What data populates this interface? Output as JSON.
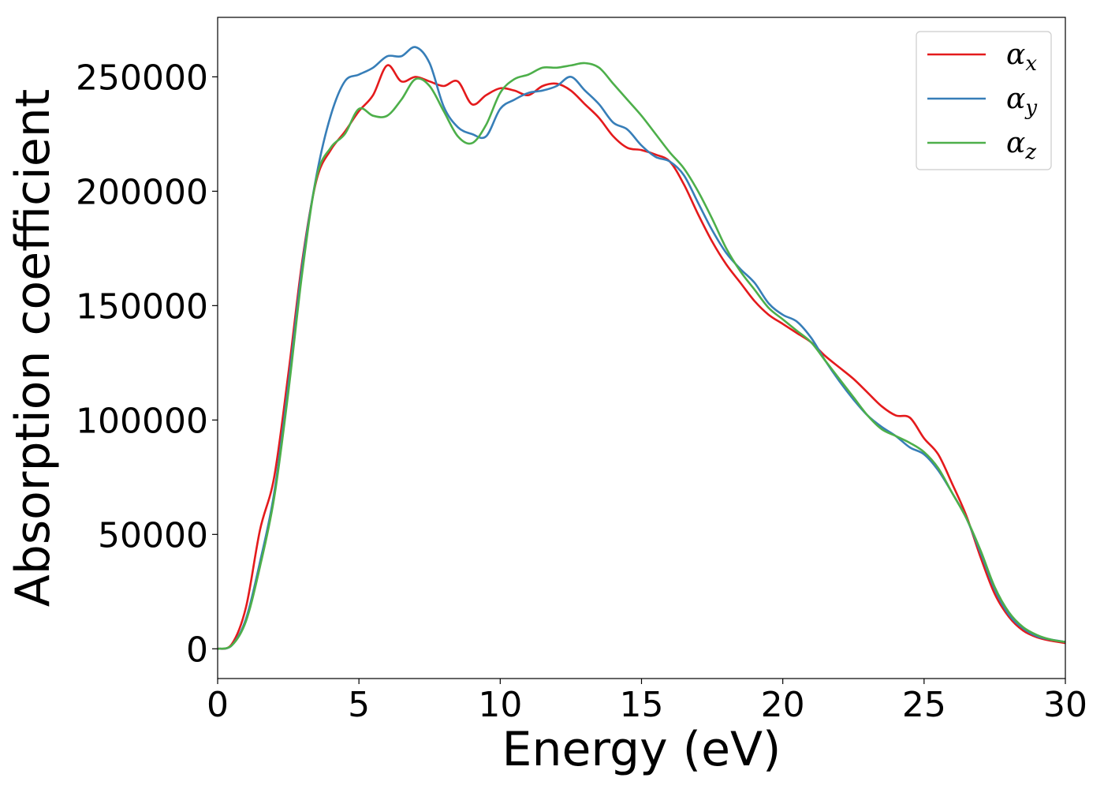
{
  "chart_data": {
    "type": "line",
    "title": "",
    "xlabel": "Energy (eV)",
    "ylabel": "Absorption coefficient",
    "xlim": [
      0,
      30
    ],
    "ylim": [
      -13000,
      276000
    ],
    "xticks": [
      0,
      5,
      10,
      15,
      20,
      25,
      30
    ],
    "xtick_labels": [
      "0",
      "5",
      "10",
      "15",
      "20",
      "25",
      "30"
    ],
    "yticks": [
      0,
      50000,
      100000,
      150000,
      200000,
      250000
    ],
    "ytick_labels": [
      "0",
      "50000",
      "100000",
      "150000",
      "200000",
      "250000"
    ],
    "grid": false,
    "legend_position": "top-right",
    "x": [
      0,
      0.5,
      1,
      1.5,
      2,
      2.5,
      3,
      3.5,
      4,
      4.5,
      5,
      5.5,
      6,
      6.5,
      7,
      7.5,
      8,
      8.5,
      9,
      9.5,
      10,
      10.5,
      11,
      11.5,
      12,
      12.5,
      13,
      13.5,
      14,
      14.5,
      15,
      15.5,
      16,
      16.5,
      17,
      17.5,
      18,
      18.5,
      19,
      19.5,
      20,
      20.5,
      21,
      21.5,
      22,
      22.5,
      23,
      23.5,
      24,
      24.5,
      25,
      25.5,
      26,
      26.5,
      27,
      27.5,
      28,
      28.5,
      29,
      29.5,
      30
    ],
    "series": [
      {
        "name": "x",
        "color": "#e41a1c",
        "values": [
          0,
          2000,
          18000,
          52000,
          75000,
          120000,
          170000,
          205000,
          218000,
          226000,
          235000,
          242000,
          255000,
          248000,
          250000,
          248000,
          246000,
          248000,
          238000,
          242000,
          245000,
          244000,
          242000,
          246000,
          247000,
          244000,
          238000,
          232000,
          224000,
          219000,
          218000,
          216000,
          213000,
          203000,
          190000,
          178000,
          168000,
          160000,
          152000,
          146000,
          142000,
          138000,
          134000,
          128000,
          123000,
          118000,
          112000,
          106000,
          102000,
          101000,
          92000,
          85000,
          72000,
          58000,
          40000,
          24000,
          14000,
          8000,
          5000,
          3500,
          2500
        ]
      },
      {
        "name": "y",
        "color": "#377eb8",
        "values": [
          0,
          1500,
          13000,
          38000,
          68000,
          115000,
          168000,
          207000,
          233000,
          248000,
          251000,
          254000,
          259000,
          259000,
          263000,
          256000,
          237000,
          228000,
          225000,
          224000,
          236000,
          240000,
          243000,
          244000,
          246000,
          250000,
          244000,
          238000,
          230000,
          227000,
          220000,
          215000,
          213000,
          207000,
          195000,
          183000,
          173000,
          166000,
          160000,
          151000,
          146000,
          143000,
          136000,
          126000,
          117000,
          109000,
          102000,
          97000,
          93000,
          88000,
          85000,
          78000,
          68000,
          57000,
          42000,
          26000,
          15000,
          9000,
          5500,
          4000,
          3000
        ]
      },
      {
        "name": "z",
        "color": "#4daf4a",
        "values": [
          0,
          1500,
          12000,
          36000,
          66000,
          112000,
          165000,
          206000,
          219000,
          225000,
          236000,
          233000,
          233000,
          240000,
          249000,
          246000,
          235000,
          224000,
          221000,
          229000,
          243000,
          249000,
          251000,
          254000,
          254000,
          255000,
          256000,
          254000,
          247000,
          240000,
          233000,
          225000,
          217000,
          210000,
          200000,
          188000,
          175000,
          165000,
          157000,
          149000,
          144000,
          139000,
          134000,
          126000,
          118000,
          110000,
          102000,
          96000,
          93000,
          90000,
          86000,
          79000,
          68000,
          57000,
          43000,
          27000,
          16000,
          9500,
          6000,
          4000,
          3000
        ]
      }
    ]
  },
  "legend": {
    "symbol": "α",
    "entries": [
      {
        "sub": "x"
      },
      {
        "sub": "y"
      },
      {
        "sub": "z"
      }
    ]
  }
}
